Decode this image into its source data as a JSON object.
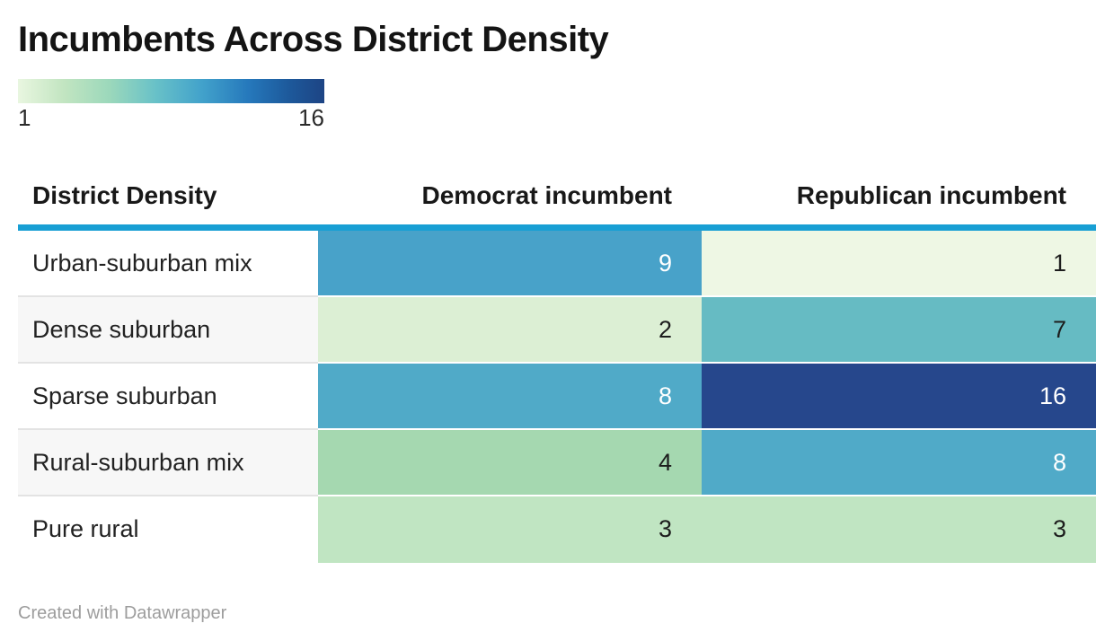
{
  "title": "Incumbents Across District Density",
  "legend": {
    "min_label": "1",
    "max_label": "16",
    "gradient_stops": [
      "#e9f6e0 0%",
      "#c2e5c1 15%",
      "#9bd8bb 30%",
      "#68c1c8 45%",
      "#42a2cb 60%",
      "#2679bc 75%",
      "#1d5a9c 88%",
      "#1d4484 100%"
    ]
  },
  "table": {
    "columns": [
      {
        "label": "District Density"
      },
      {
        "label": "Democrat incumbent"
      },
      {
        "label": "Republican incumbent"
      }
    ],
    "rows": [
      {
        "label": "Urban-suburban mix",
        "cells": [
          {
            "value": "9",
            "bg": "#48a2c9",
            "text_color": "#ffffff"
          },
          {
            "value": "1",
            "bg": "#eef7e4",
            "text_color": "#1d1d1d"
          }
        ]
      },
      {
        "label": "Dense suburban",
        "cells": [
          {
            "value": "2",
            "bg": "#dcefd4",
            "text_color": "#1d1d1d"
          },
          {
            "value": "7",
            "bg": "#66bbc3",
            "text_color": "#1d1d1d"
          }
        ]
      },
      {
        "label": "Sparse suburban",
        "cells": [
          {
            "value": "8",
            "bg": "#50aac8",
            "text_color": "#ffffff"
          },
          {
            "value": "16",
            "bg": "#26478c",
            "text_color": "#ffffff"
          }
        ]
      },
      {
        "label": "Rural-suburban mix",
        "cells": [
          {
            "value": "4",
            "bg": "#a5d8b0",
            "text_color": "#1d1d1d"
          },
          {
            "value": "8",
            "bg": "#50aac8",
            "text_color": "#ffffff"
          }
        ]
      },
      {
        "label": "Pure rural",
        "cells": [
          {
            "value": "3",
            "bg": "#c0e5c2",
            "text_color": "#1d1d1d"
          },
          {
            "value": "3",
            "bg": "#c0e5c2",
            "text_color": "#1d1d1d"
          }
        ]
      }
    ]
  },
  "footer": {
    "attribution": "Created with Datawrapper"
  },
  "colors": {
    "header_rule": "#189fd4",
    "row_stripe_bg": "#f7f7f7",
    "label_divider": "#e3e3e3",
    "heat_divider": "#ffffff",
    "footer_text": "#9d9d9d"
  },
  "chart_data": {
    "type": "heatmap",
    "title": "Incumbents Across District Density",
    "categories": [
      "Urban-suburban mix",
      "Dense suburban",
      "Sparse suburban",
      "Rural-suburban mix",
      "Pure rural"
    ],
    "series": [
      {
        "name": "Democrat incumbent",
        "values": [
          9,
          2,
          8,
          4,
          3
        ]
      },
      {
        "name": "Republican incumbent",
        "values": [
          1,
          7,
          16,
          8,
          3
        ]
      }
    ],
    "color_scale": {
      "min": 1,
      "max": 16,
      "description": "light green to dark navy blue (GnBu-style sequential scale)"
    },
    "legend_position": "top-left",
    "attribution": "Created with Datawrapper"
  }
}
